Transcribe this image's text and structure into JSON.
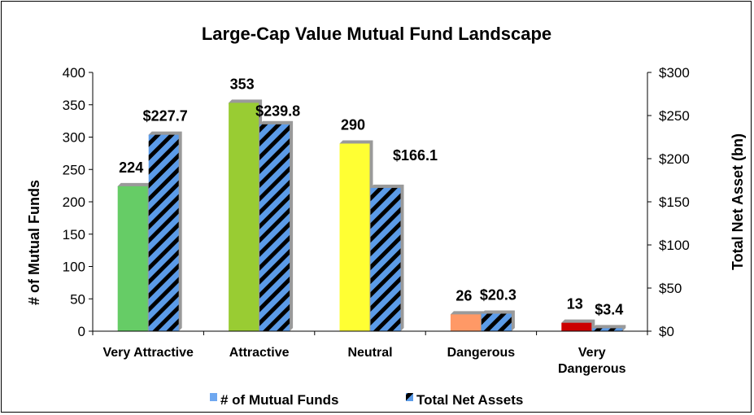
{
  "chart_data": {
    "type": "bar",
    "title": "Large-Cap Value Mutual Fund Landscape",
    "categories": [
      [
        "Very Attractive"
      ],
      [
        "Attractive"
      ],
      [
        "Neutral"
      ],
      [
        "Dangerous"
      ],
      [
        "Very",
        "Dangerous"
      ]
    ],
    "series": [
      {
        "name": "# of Mutual Funds",
        "axis": "left",
        "values": [
          224,
          353,
          290,
          26,
          13
        ],
        "labels": [
          "224",
          "353",
          "290",
          "26",
          "13"
        ],
        "colors": [
          "#66CC66",
          "#99CC33",
          "#FFFF33",
          "#FF9966",
          "#CC0000"
        ],
        "legend_color": "#6FA8F0"
      },
      {
        "name": "Total Net Assets",
        "axis": "right",
        "values": [
          227.7,
          239.8,
          166.1,
          20.3,
          3.4
        ],
        "labels": [
          "$227.7",
          "$239.8",
          "$166.1",
          "$20.3",
          "$3.4"
        ],
        "fill": "hatched",
        "colors": [
          "#5B9BE8",
          "#000000"
        ]
      }
    ],
    "left_axis": {
      "label": "# of Mutual Funds",
      "range": [
        0,
        400
      ],
      "ticks": [
        "0",
        "50",
        "100",
        "150",
        "200",
        "250",
        "300",
        "350",
        "400"
      ]
    },
    "right_axis": {
      "label": "Total Net Asset (bn)",
      "range": [
        0,
        300
      ],
      "ticks": [
        "$0",
        "$50",
        "$100",
        "$150",
        "$200",
        "$250",
        "$300"
      ]
    },
    "grid": false,
    "legend_position": "bottom"
  }
}
